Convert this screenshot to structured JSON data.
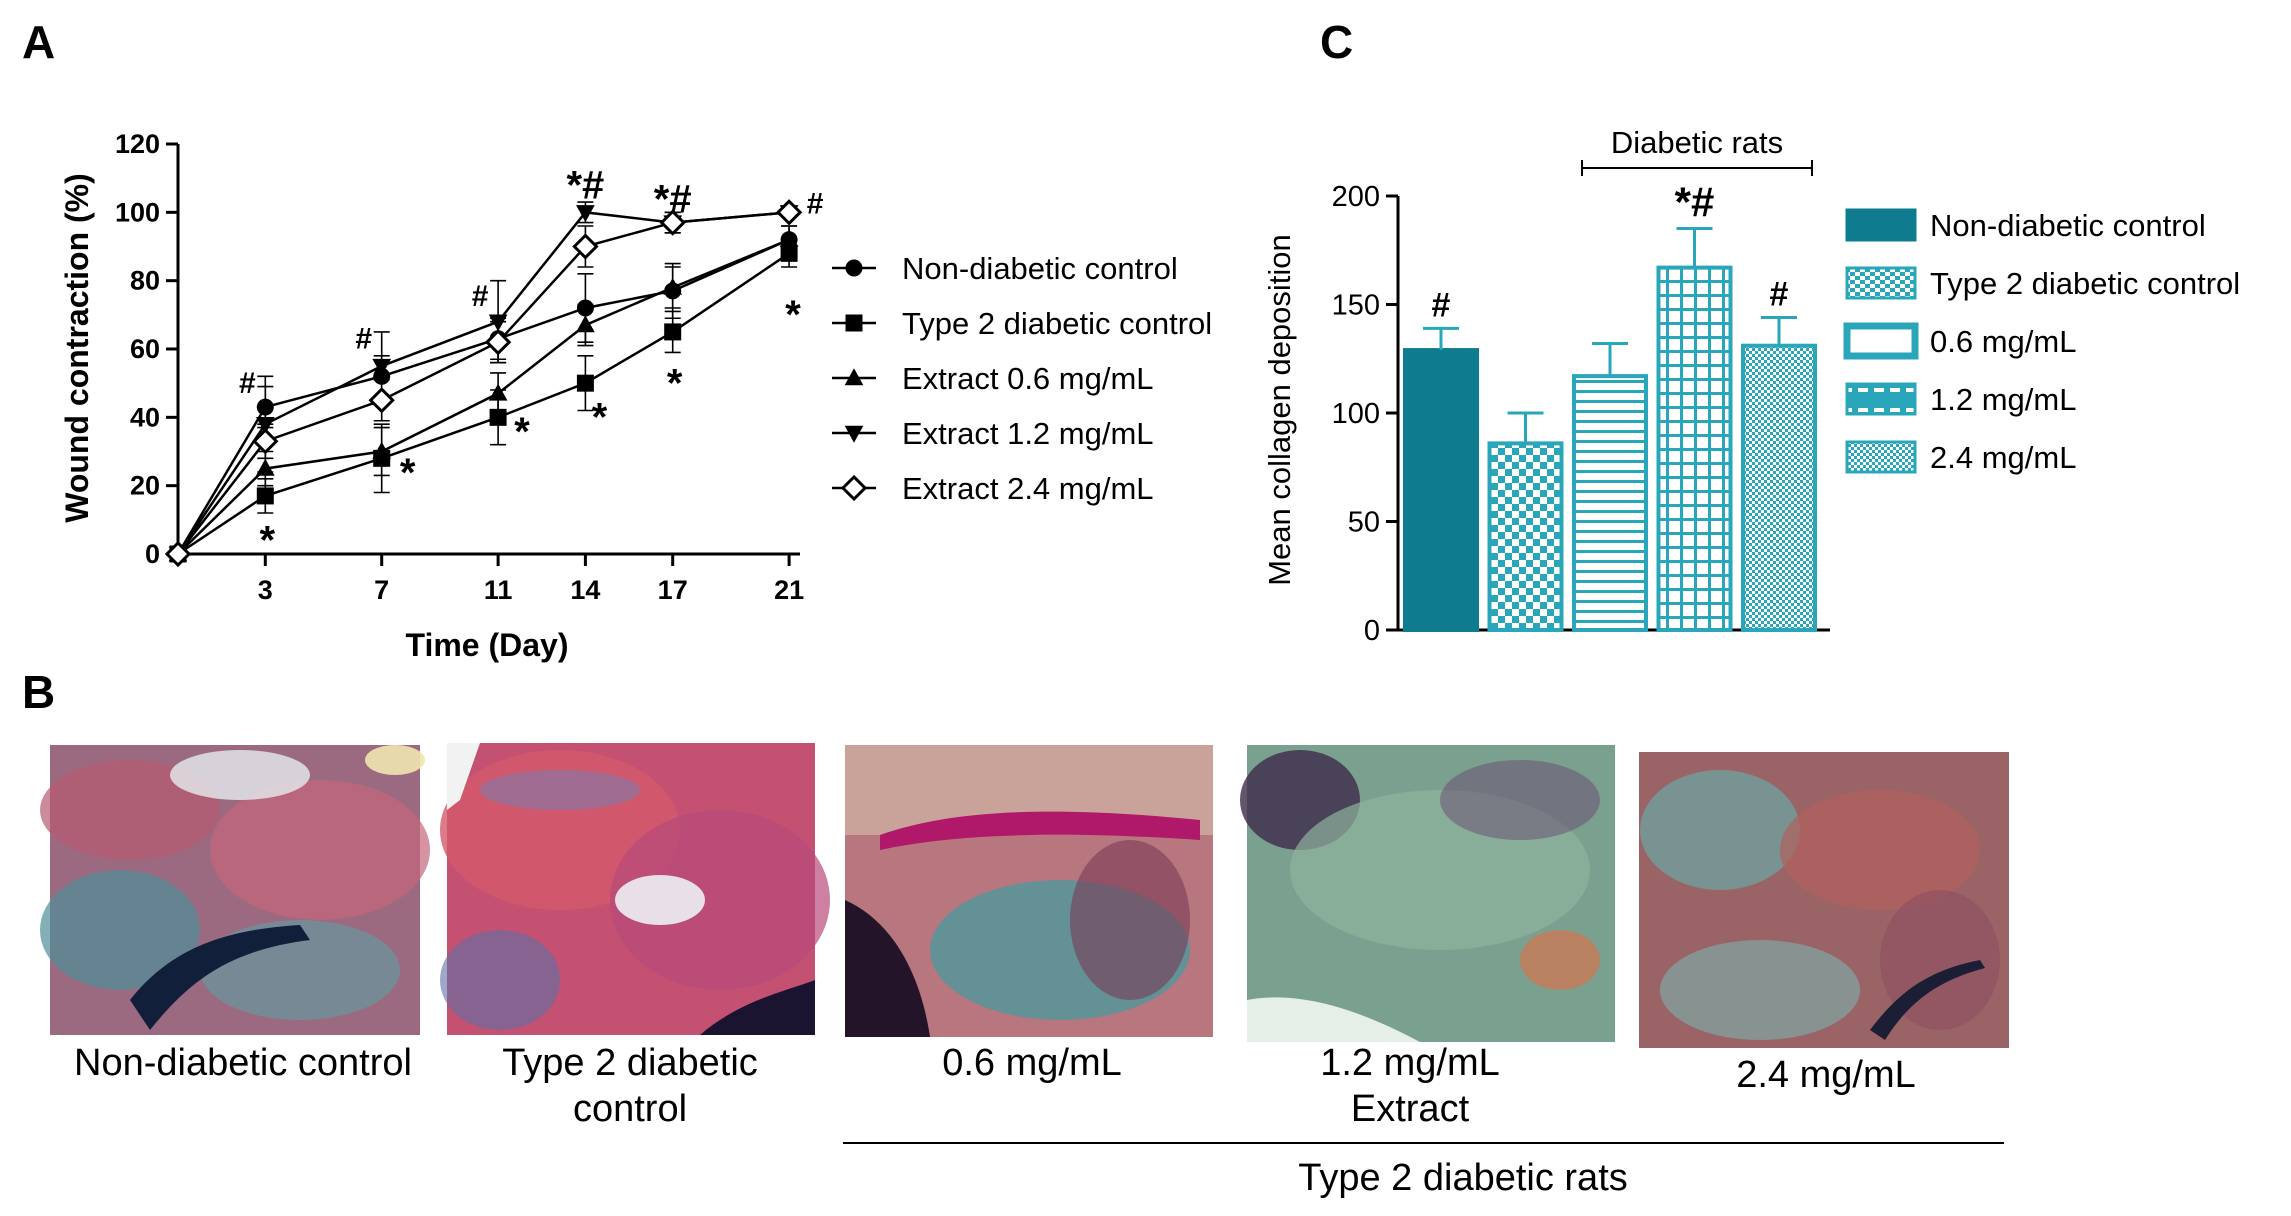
{
  "chart_data": [
    {
      "panel": "A",
      "type": "line",
      "xlabel": "Time (Day)",
      "ylabel": "Wound contraction (%)",
      "ylim": [
        0,
        120
      ],
      "yticks": [
        0,
        20,
        40,
        60,
        80,
        100,
        120
      ],
      "x": [
        0,
        3,
        7,
        11,
        14,
        17,
        21
      ],
      "x_tick_labels": [
        "3",
        "7",
        "11",
        "14",
        "17",
        "21"
      ],
      "legend_position": "right",
      "series": [
        {
          "name": "Non-diabetic control",
          "marker": "circle",
          "values": [
            0,
            43,
            52,
            63,
            72,
            77,
            92
          ],
          "errors": [
            0,
            6,
            6,
            6,
            10,
            8,
            4
          ]
        },
        {
          "name": "Type 2 diabetic control",
          "marker": "square",
          "values": [
            0,
            17,
            28,
            40,
            50,
            65,
            88
          ],
          "errors": [
            0,
            5,
            10,
            8,
            8,
            6,
            4
          ]
        },
        {
          "name": "Extract 0.6 mg/mL",
          "marker": "triangle-up",
          "values": [
            0,
            25,
            30,
            47,
            67,
            78,
            92
          ],
          "errors": [
            0,
            5,
            7,
            6,
            6,
            6,
            4
          ]
        },
        {
          "name": "Extract 1.2 mg/mL",
          "marker": "triangle-down",
          "values": [
            0,
            38,
            55,
            68,
            100,
            97,
            100
          ],
          "errors": [
            0,
            14,
            10,
            12,
            3,
            3,
            1
          ]
        },
        {
          "name": "Extract 2.4 mg/mL",
          "marker": "diamond",
          "values": [
            0,
            33,
            45,
            62,
            90,
            97,
            100
          ],
          "errors": [
            0,
            5,
            6,
            6,
            6,
            3,
            1
          ]
        }
      ],
      "annotations": [
        {
          "label": "#",
          "x": 3,
          "y": 46
        },
        {
          "label": "*",
          "x": 3,
          "y": 6
        },
        {
          "label": "#",
          "x": 7,
          "y": 59
        },
        {
          "label": "*",
          "x": 7,
          "y": 24
        },
        {
          "label": "#",
          "x": 11,
          "y": 72
        },
        {
          "label": "*",
          "x": 11,
          "y": 36
        },
        {
          "label": "*",
          "x": 14,
          "y": 42
        },
        {
          "label": "*#",
          "x": 14,
          "y": 104
        },
        {
          "label": "*",
          "x": 17,
          "y": 52
        },
        {
          "label": "*#",
          "x": 17,
          "y": 100
        },
        {
          "label": "#",
          "x": 21,
          "y": 102
        },
        {
          "label": "*",
          "x": 21,
          "y": 72
        }
      ]
    },
    {
      "panel": "C",
      "type": "bar",
      "ylabel": "Mean collagen deposition",
      "ylim": [
        0,
        200
      ],
      "yticks": [
        0,
        50,
        100,
        150,
        200
      ],
      "categories": [
        "Non-diabetic control",
        "Type 2 diabetic control",
        "0.6 mg/mL",
        "1.2 mg/mL",
        "2.4 mg/mL"
      ],
      "values": [
        129,
        86,
        117,
        167,
        131
      ],
      "errors": [
        10,
        14,
        15,
        18,
        13
      ],
      "patterns": [
        "solid",
        "checker",
        "hlines",
        "grid",
        "finecheck"
      ],
      "significance": [
        "#",
        "",
        "",
        "*#",
        "#"
      ],
      "group_label": "Diabetic rats",
      "legend_position": "right",
      "legend": [
        "Non-diabetic control",
        "Type 2 diabetic control",
        "0.6 mg/mL",
        "1.2 mg/mL",
        "2.4 mg/mL"
      ]
    }
  ],
  "panels": {
    "a": "A",
    "b": "B",
    "c": "C"
  },
  "micrographs": {
    "captions": [
      [
        "Non-diabetic control"
      ],
      [
        "Type 2 diabetic",
        "control"
      ],
      [
        "0.6 mg/mL"
      ],
      [
        "1.2 mg/mL",
        "Extract"
      ],
      [
        "2.4 mg/mL"
      ]
    ],
    "group_caption": "Type 2 diabetic rats"
  },
  "colors": {
    "teal_dark": "#0e7c8e",
    "teal": "#2aa6bb",
    "ink": "#000000"
  }
}
